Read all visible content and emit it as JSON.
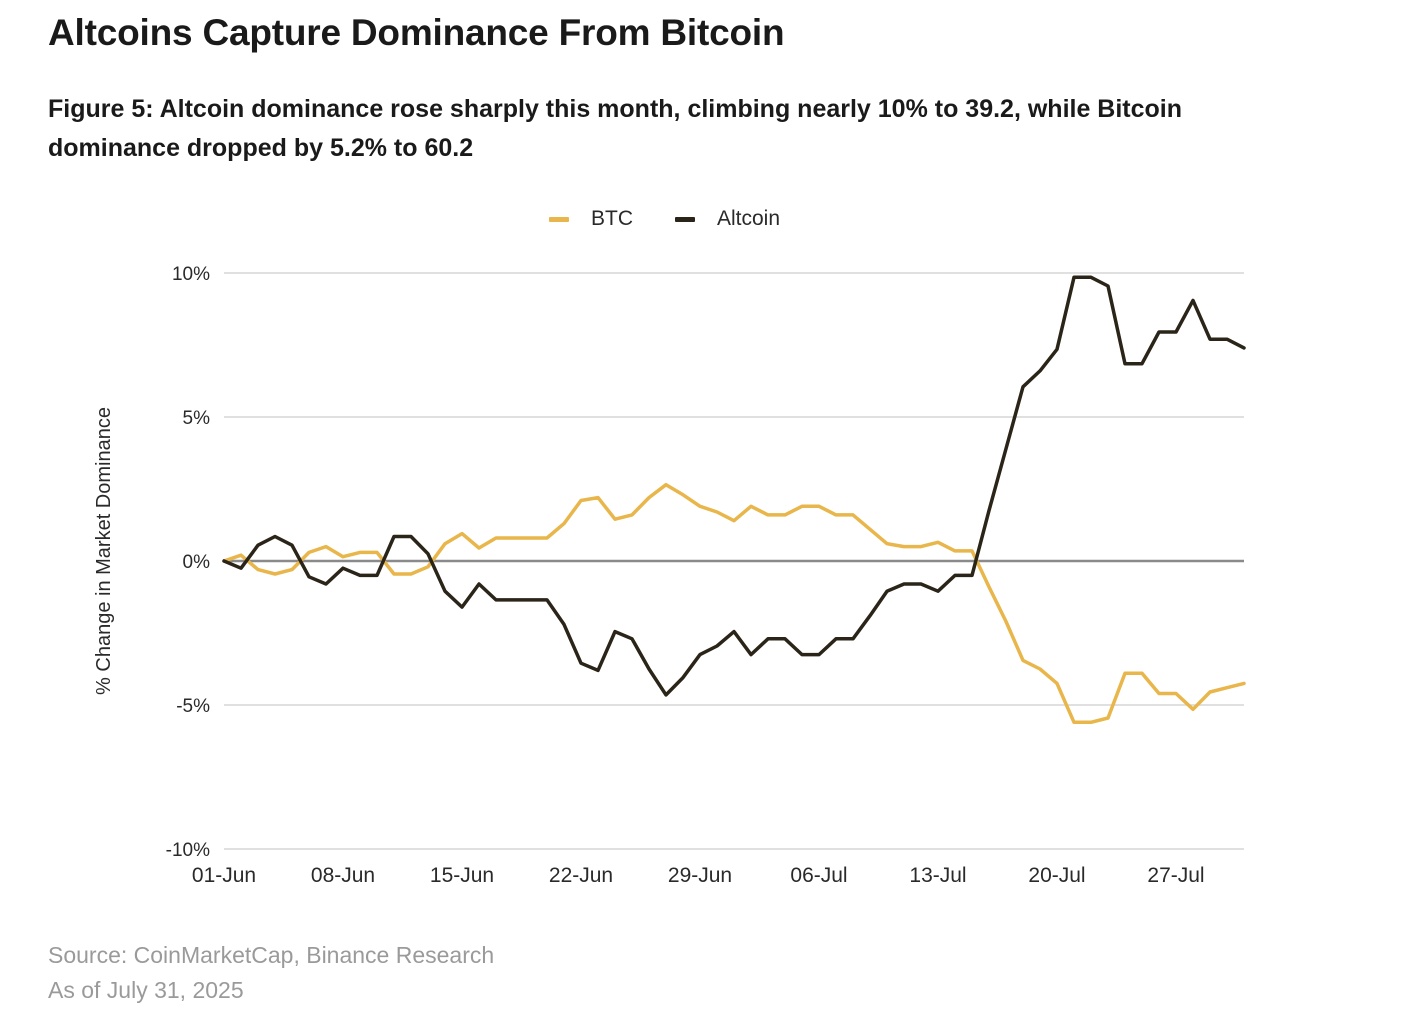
{
  "header": {
    "title": "Altcoins Capture Dominance From Bitcoin",
    "subtitle": "Figure 5: Altcoin dominance rose sharply this month, climbing nearly 10% to 39.2, while Bitcoin dominance dropped by 5.2% to 60.2"
  },
  "footer": {
    "source": "Source: CoinMarketCap, Binance Research",
    "as_of": "As of July 31, 2025"
  },
  "colors": {
    "btc": "#e8b64a",
    "altcoin": "#2b2519",
    "grid": "#d6d6d6",
    "zero": "#8a8a8a"
  },
  "chart_data": {
    "type": "line",
    "title": "Altcoins Capture Dominance From Bitcoin",
    "xlabel": "",
    "ylabel": "% Change in Market Dominance",
    "ylim": [
      -10,
      10
    ],
    "yticks": [
      10,
      5,
      0,
      -5,
      -10
    ],
    "ytick_labels": [
      "10%",
      "5%",
      "0%",
      "-5%",
      "-10%"
    ],
    "xtick_labels": [
      "01-Jun",
      "08-Jun",
      "15-Jun",
      "22-Jun",
      "29-Jun",
      "06-Jul",
      "13-Jul",
      "20-Jul",
      "27-Jul"
    ],
    "xtick_index": [
      0,
      7,
      14,
      21,
      28,
      35,
      42,
      49,
      56
    ],
    "legend": "top-center",
    "grid": true,
    "series": [
      {
        "name": "BTC",
        "values": [
          0.0,
          0.2,
          -0.3,
          -0.45,
          -0.3,
          0.3,
          0.5,
          0.15,
          0.3,
          0.3,
          -0.45,
          -0.45,
          -0.2,
          0.6,
          0.95,
          0.45,
          0.8,
          0.8,
          0.8,
          0.8,
          1.3,
          2.1,
          2.2,
          1.45,
          1.6,
          2.2,
          2.65,
          2.3,
          1.9,
          1.7,
          1.4,
          1.9,
          1.6,
          1.6,
          1.9,
          1.9,
          1.6,
          1.6,
          1.1,
          0.6,
          0.5,
          0.5,
          0.65,
          0.35,
          0.35,
          -0.9,
          -2.1,
          -3.45,
          -3.75,
          -4.25,
          -5.6,
          -5.6,
          -5.45,
          -3.9,
          -3.9,
          -4.6,
          -4.6,
          -5.15,
          -4.55,
          -4.4,
          -4.25
        ]
      },
      {
        "name": "Altcoin",
        "values": [
          0.0,
          -0.25,
          0.55,
          0.85,
          0.55,
          -0.55,
          -0.8,
          -0.25,
          -0.5,
          -0.5,
          0.85,
          0.85,
          0.25,
          -1.05,
          -1.6,
          -0.8,
          -1.35,
          -1.35,
          -1.35,
          -1.35,
          -2.2,
          -3.55,
          -3.8,
          -2.45,
          -2.7,
          -3.75,
          -4.65,
          -4.05,
          -3.25,
          -2.95,
          -2.45,
          -3.25,
          -2.7,
          -2.7,
          -3.25,
          -3.25,
          -2.7,
          -2.7,
          -1.9,
          -1.05,
          -0.8,
          -0.8,
          -1.05,
          -0.5,
          -0.5,
          1.75,
          3.9,
          6.05,
          6.6,
          7.35,
          9.85,
          9.85,
          9.55,
          6.85,
          6.85,
          7.95,
          7.95,
          9.05,
          7.7,
          7.7,
          7.4
        ]
      }
    ]
  }
}
